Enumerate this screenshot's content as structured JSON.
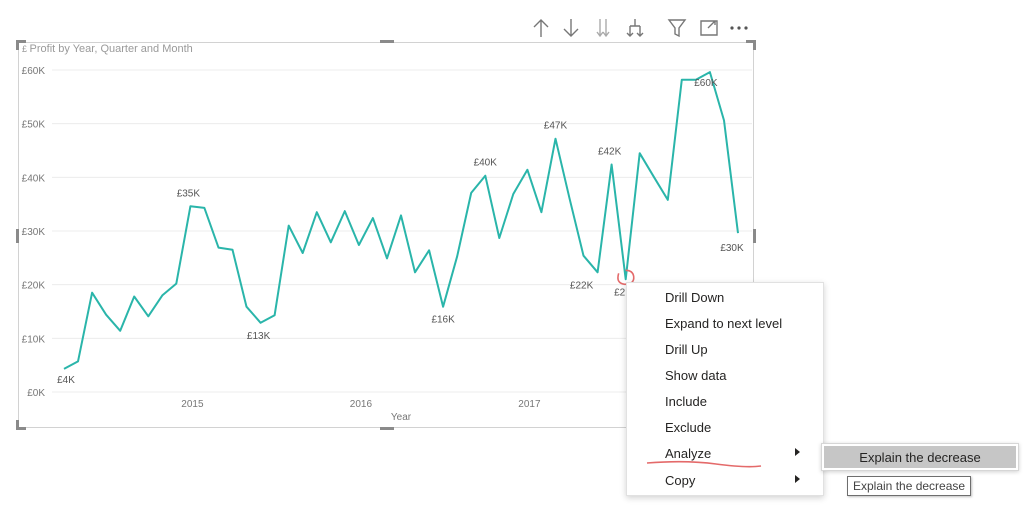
{
  "toolbar": {
    "buttons": [
      {
        "icon": "arrow-up-icon"
      },
      {
        "icon": "arrow-down-icon"
      },
      {
        "icon": "double-arrow-down-icon"
      },
      {
        "icon": "fork-down-icon"
      },
      {
        "icon": "filter-icon"
      },
      {
        "icon": "focus-mode-icon"
      },
      {
        "icon": "more-options-icon"
      }
    ]
  },
  "visual": {
    "title": "Profit by Year, Quarter and Month",
    "line_color": "#2ab5aa"
  },
  "chart_data": {
    "type": "line",
    "title": "Profit by Year, Quarter and Month",
    "xlabel": "Year",
    "ylabel": "",
    "x_tick_labels": [
      "2015",
      "2016",
      "2017"
    ],
    "y_tick_labels": [
      "£0K",
      "£10K",
      "£20K",
      "£30K",
      "£40K",
      "£50K",
      "£60K"
    ],
    "ylim": [
      0,
      60
    ],
    "grid": true,
    "series": [
      {
        "values": [
          4.3,
          5.7,
          18.5,
          14.4,
          11.4,
          17.8,
          14.1,
          18,
          20.2,
          34.6,
          34.3,
          26.9,
          26.5,
          15.9,
          12.9,
          14.3,
          31,
          25.9,
          33.5,
          27.9,
          33.7,
          27.4,
          32.4,
          24.9,
          32.9,
          22.3,
          26.4,
          15.9,
          25.3,
          37.1,
          40.3,
          28.7,
          36.9,
          41.4,
          33.5,
          47.2,
          36.1,
          25.4,
          22.3,
          42.4,
          21,
          44.5,
          40.1,
          35.8,
          58.2,
          58.2,
          59.6,
          50.6,
          29.6
        ]
      }
    ],
    "data_labels": [
      {
        "index": 0,
        "text": "£4K"
      },
      {
        "index": 9,
        "text": "£35K"
      },
      {
        "index": 14,
        "text": "£13K"
      },
      {
        "index": 27,
        "text": "£16K"
      },
      {
        "index": 30,
        "text": "£40K"
      },
      {
        "index": 35,
        "text": "£47K"
      },
      {
        "index": 38,
        "text": "£22K"
      },
      {
        "index": 39,
        "text": "£42K"
      },
      {
        "index": 40,
        "text": "£2"
      },
      {
        "index": 46,
        "text": "£60K"
      },
      {
        "index": 48,
        "text": "£30K"
      }
    ]
  },
  "annotation": {
    "color": "#e46a6a"
  },
  "context_menu": {
    "items": [
      {
        "label": "Drill Down"
      },
      {
        "label": "Expand to next level"
      },
      {
        "label": "Drill Up"
      },
      {
        "label": "Show data"
      },
      {
        "label": "Include"
      },
      {
        "label": "Exclude"
      },
      {
        "label": "Analyze"
      },
      {
        "label": "Copy"
      }
    ]
  },
  "submenu": {
    "item_label": "Explain the decrease"
  },
  "tooltip": {
    "text": "Explain the decrease"
  }
}
